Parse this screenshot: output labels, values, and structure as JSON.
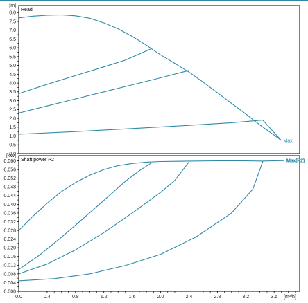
{
  "colors": {
    "curve": "#2e8aa8",
    "frame": "#000000",
    "accent_bar": "#2e8aa8",
    "background": "#ffffff"
  },
  "chart_data": [
    {
      "type": "line",
      "title": "Head",
      "ylabel": "[m]",
      "xlim": [
        0,
        3.96
      ],
      "ylim": [
        0,
        8.4
      ],
      "yticks": [
        "0.0",
        "0.5",
        "1.0",
        "1.5",
        "2.0",
        "2.5",
        "3.0",
        "3.5",
        "4.0",
        "4.5",
        "5.0",
        "5.5",
        "6.0",
        "6.5",
        "7.0",
        "7.5",
        "8.0"
      ],
      "grid": false,
      "series": [
        {
          "name": "Max",
          "points": [
            [
              0,
              7.7
            ],
            [
              0.2,
              7.8
            ],
            [
              0.4,
              7.85
            ],
            [
              0.6,
              7.87
            ],
            [
              0.8,
              7.82
            ],
            [
              1.0,
              7.68
            ],
            [
              1.2,
              7.42
            ],
            [
              1.4,
              7.08
            ],
            [
              1.6,
              6.65
            ],
            [
              1.8,
              6.15
            ],
            [
              1.87,
              5.95
            ],
            [
              2.0,
              5.6
            ],
            [
              2.2,
              5.12
            ],
            [
              2.4,
              4.62
            ],
            [
              2.6,
              4.05
            ],
            [
              2.8,
              3.45
            ],
            [
              3.0,
              2.85
            ],
            [
              3.2,
              2.25
            ],
            [
              3.4,
              1.62
            ],
            [
              3.6,
              1.05
            ],
            [
              3.7,
              0.75
            ]
          ]
        },
        {
          "points": [
            [
              0,
              3.4
            ],
            [
              0.3,
              3.8
            ],
            [
              0.6,
              4.18
            ],
            [
              0.9,
              4.55
            ],
            [
              1.2,
              4.92
            ],
            [
              1.5,
              5.3
            ],
            [
              1.87,
              5.95
            ]
          ]
        },
        {
          "points": [
            [
              0,
              2.3
            ],
            [
              0.4,
              2.7
            ],
            [
              0.8,
              3.1
            ],
            [
              1.2,
              3.5
            ],
            [
              1.6,
              3.9
            ],
            [
              2.0,
              4.3
            ],
            [
              2.4,
              4.72
            ]
          ]
        },
        {
          "points": [
            [
              0,
              1.1
            ],
            [
              0.8,
              1.25
            ],
            [
              1.6,
              1.42
            ],
            [
              2.4,
              1.6
            ],
            [
              3.0,
              1.75
            ],
            [
              3.44,
              1.9
            ],
            [
              3.7,
              0.75
            ]
          ]
        }
      ],
      "series_labels": [
        "Max"
      ]
    },
    {
      "type": "line",
      "title": "Shaft power P2",
      "ylabel": "[kW]",
      "xlabel": "[m³/h]",
      "xlim": [
        0,
        3.96
      ],
      "ylim": [
        0,
        0.0624
      ],
      "xticks": [
        "0.0",
        "0.4",
        "0.8",
        "1.2",
        "1.6",
        "2.0",
        "2.4",
        "2.8",
        "3.2",
        "3.6"
      ],
      "yticks": [
        "0.000",
        "0.004",
        "0.008",
        "0.012",
        "0.016",
        "0.020",
        "0.024",
        "0.028",
        "0.032",
        "0.036",
        "0.040",
        "0.044",
        "0.048",
        "0.052",
        "0.056",
        "0.060"
      ],
      "grid": false,
      "series": [
        {
          "name": "Max(P2)",
          "points": [
            [
              0,
              0.028
            ],
            [
              0.2,
              0.0345
            ],
            [
              0.4,
              0.0405
            ],
            [
              0.6,
              0.0458
            ],
            [
              0.8,
              0.05
            ],
            [
              1.0,
              0.0534
            ],
            [
              1.2,
              0.056
            ],
            [
              1.4,
              0.0578
            ],
            [
              1.6,
              0.0588
            ],
            [
              1.8,
              0.0594
            ],
            [
              2.0,
              0.0597
            ],
            [
              2.4,
              0.0599
            ],
            [
              2.8,
              0.06
            ],
            [
              3.2,
              0.06
            ],
            [
              3.44,
              0.0599
            ],
            [
              3.6,
              0.06
            ],
            [
              3.74,
              0.0601
            ]
          ]
        },
        {
          "points": [
            [
              0,
              0.01
            ],
            [
              0.3,
              0.0168
            ],
            [
              0.6,
              0.0248
            ],
            [
              0.9,
              0.0332
            ],
            [
              1.2,
              0.0418
            ],
            [
              1.5,
              0.0505
            ],
            [
              1.7,
              0.0555
            ],
            [
              1.87,
              0.059
            ]
          ]
        },
        {
          "points": [
            [
              0,
              0.008
            ],
            [
              0.4,
              0.0125
            ],
            [
              0.8,
              0.019
            ],
            [
              1.2,
              0.027
            ],
            [
              1.6,
              0.036
            ],
            [
              2.0,
              0.0455
            ],
            [
              2.2,
              0.051
            ],
            [
              2.4,
              0.0595
            ]
          ]
        },
        {
          "points": [
            [
              0,
              0.0048
            ],
            [
              0.5,
              0.0058
            ],
            [
              1.0,
              0.008
            ],
            [
              1.5,
              0.0118
            ],
            [
              2.0,
              0.017
            ],
            [
              2.5,
              0.025
            ],
            [
              3.0,
              0.036
            ],
            [
              3.3,
              0.047
            ],
            [
              3.44,
              0.0597
            ]
          ]
        }
      ],
      "series_labels": [
        "Max(P2)",
        "Max(P2)"
      ]
    }
  ]
}
